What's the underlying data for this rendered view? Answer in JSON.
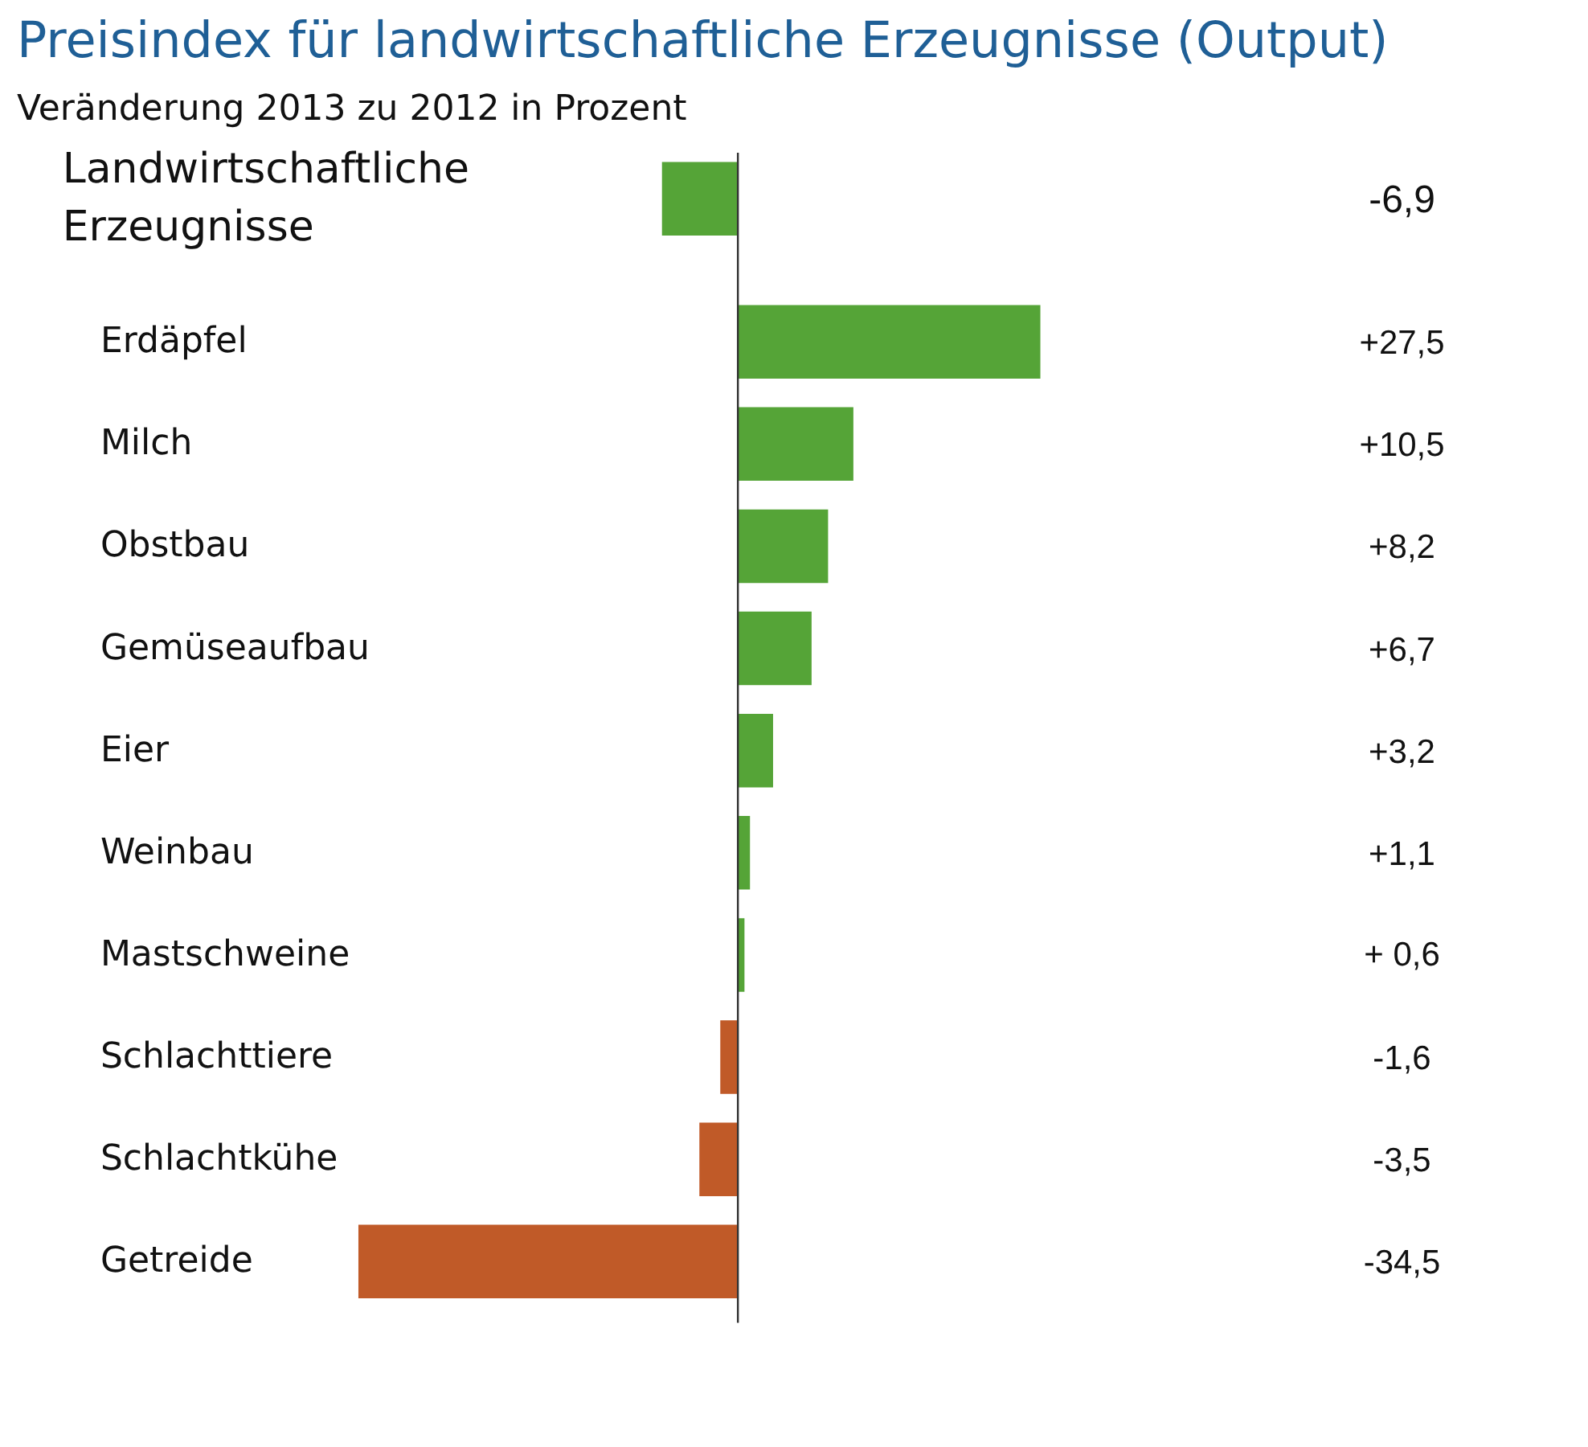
{
  "chart_data": {
    "type": "bar",
    "orientation": "horizontal",
    "title": "Preisindex für landwirtschaftliche Erzeugnisse (Output)",
    "subtitle": "Veränderung 2013 zu 2012 in Prozent",
    "categories": [
      "Landwirtschaftliche Erzeugnisse",
      "Erdäpfel",
      "Milch",
      "Obstbau",
      "Gemüseaufbau",
      "Eier",
      "Weinbau",
      "Mastschweine",
      "Schlachttiere",
      "Schlachtkühe",
      "Getreide"
    ],
    "values": [
      -6.9,
      27.5,
      10.5,
      8.2,
      6.7,
      3.2,
      1.1,
      0.6,
      -1.6,
      -3.5,
      -34.5
    ],
    "colors": [
      "#55a437",
      "#55a437",
      "#55a437",
      "#55a437",
      "#55a437",
      "#55a437",
      "#55a437",
      "#55a437",
      "#c05a28",
      "#c05a28",
      "#c05a28"
    ],
    "value_labels": [
      "-6,9",
      "+27,5",
      "+10,5",
      "+8,2",
      "+6,7",
      "+3,2",
      "+1,1",
      "+ 0,6",
      "-1,6",
      "-3,5",
      "-34,5"
    ],
    "grid": false
  }
}
